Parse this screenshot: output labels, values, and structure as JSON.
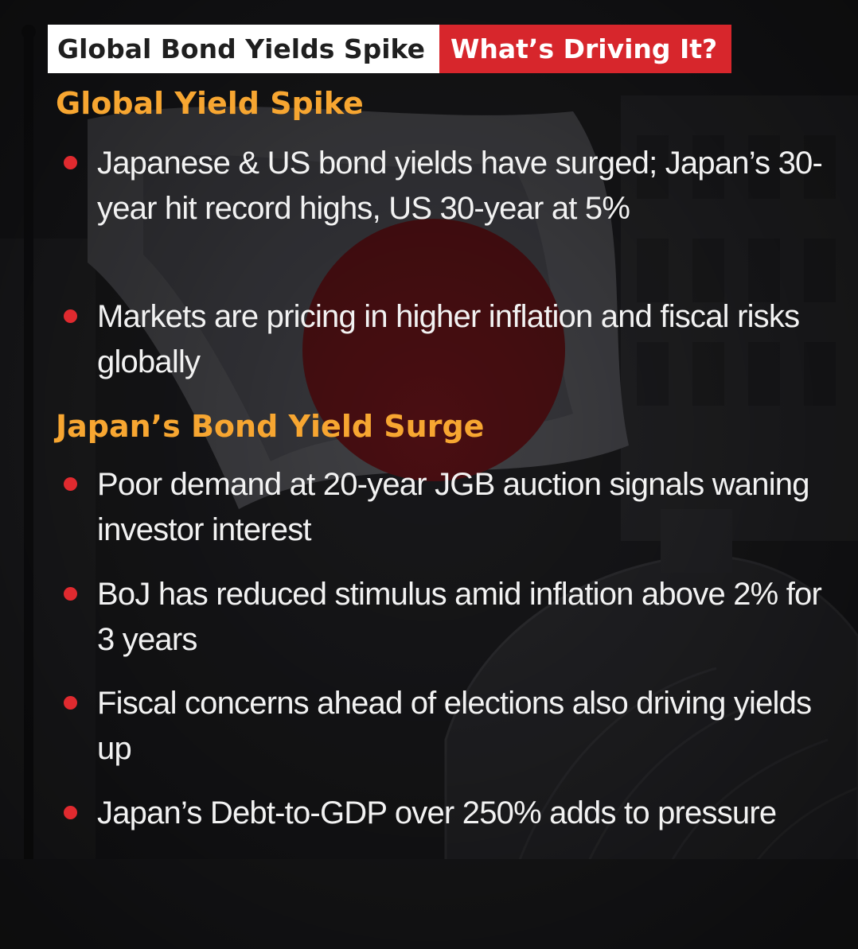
{
  "header": {
    "title": "Global Bond Yields Spike",
    "tag": "What’s Driving It?"
  },
  "sections": [
    {
      "title": "Global Yield Spike",
      "items": [
        "Japanese & US bond yields have surged; Japan’s 30-year hit record highs, US 30-year at 5%",
        "Markets are pricing in higher inflation and fiscal risks globally"
      ]
    },
    {
      "title": "Japan’s Bond Yield Surge",
      "items": [
        "Poor demand at 20-year JGB auction signals waning investor interest",
        "BoJ has reduced stimulus amid inflation above 2% for 3 years",
        "Fiscal concerns ahead of elections also driving yields up",
        "Japan’s Debt-to-GDP over 250% adds to pressure"
      ]
    }
  ],
  "colors": {
    "accent_red": "#d7262c",
    "section_orange": "#f7a631",
    "bullet_red": "#e02a2f",
    "text": "#f2f2f2"
  }
}
